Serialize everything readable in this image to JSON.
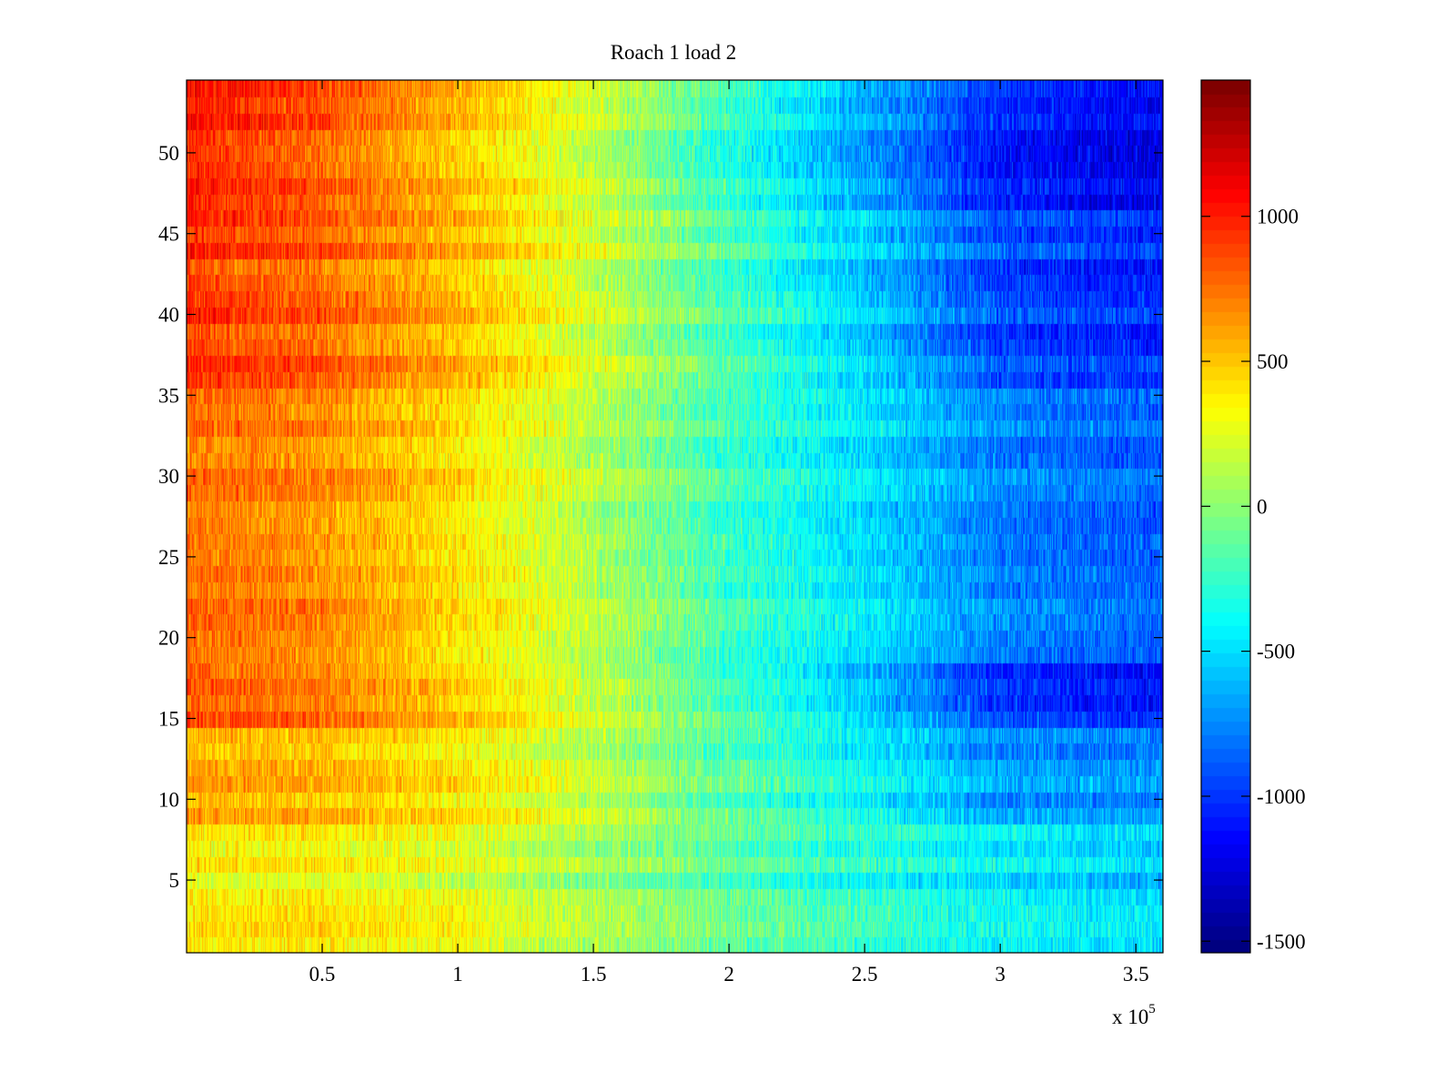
{
  "chart_data": {
    "type": "heatmap",
    "title": "Roach 1 load 2",
    "xlabel": "",
    "ylabel": "",
    "x_exponent_label": "x 10",
    "x_exponent": "5",
    "xlim": [
      0,
      360000
    ],
    "ylim": [
      0.5,
      54.5
    ],
    "xticks": [
      50000,
      100000,
      150000,
      200000,
      250000,
      300000,
      350000
    ],
    "xtick_labels": [
      "0.5",
      "1",
      "1.5",
      "2",
      "2.5",
      "3",
      "3.5"
    ],
    "yticks": [
      5,
      10,
      15,
      20,
      25,
      30,
      35,
      40,
      45,
      50
    ],
    "ytick_labels": [
      "5",
      "10",
      "15",
      "20",
      "25",
      "30",
      "35",
      "40",
      "45",
      "50"
    ],
    "rows": 54,
    "colormap": "jet",
    "clim": [
      -1540,
      1470
    ],
    "colorbar": {
      "ticks": [
        -1500,
        -1000,
        -500,
        0,
        500,
        1000
      ],
      "tick_labels": [
        "-1500",
        "-1000",
        "-500",
        "0",
        "500",
        "1000"
      ],
      "placement": "right"
    },
    "approx_row_band_profiles": {
      "x_anchors": [
        0,
        50000,
        100000,
        150000,
        200000,
        250000,
        300000,
        360000
      ],
      "noise_amplitude": 260,
      "bands": [
        {
          "rows": [
            1,
            8
          ],
          "values": [
            350,
            350,
            250,
            50,
            -150,
            -300,
            -450,
            -550
          ]
        },
        {
          "rows": [
            9,
            14
          ],
          "values": [
            600,
            550,
            400,
            150,
            -150,
            -400,
            -700,
            -750
          ]
        },
        {
          "rows": [
            15,
            18
          ],
          "values": [
            850,
            750,
            500,
            200,
            -200,
            -550,
            -1000,
            -1100
          ]
        },
        {
          "rows": [
            19,
            35
          ],
          "values": [
            800,
            700,
            450,
            150,
            -200,
            -450,
            -750,
            -850
          ]
        },
        {
          "rows": [
            36,
            46
          ],
          "values": [
            950,
            800,
            550,
            200,
            -200,
            -550,
            -950,
            -1050
          ]
        },
        {
          "rows": [
            47,
            54
          ],
          "values": [
            1050,
            850,
            550,
            200,
            -250,
            -650,
            -1050,
            -1200
          ]
        }
      ]
    }
  }
}
